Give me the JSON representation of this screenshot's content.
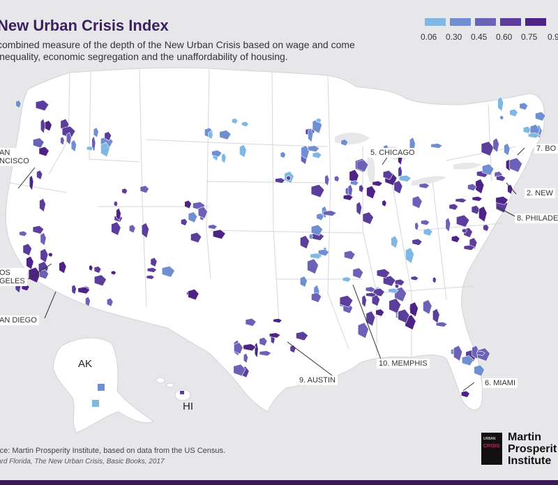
{
  "title": "New Urban Crisis Index",
  "subtitle": "combined measure of the depth of the New Urban Crisis based on wage and come inequality, economic segregation and the unaffordability of housing.",
  "legend": {
    "stops": [
      "0.06",
      "0.30",
      "0.45",
      "0.60",
      "0.75",
      "0.9"
    ],
    "colors": [
      "#7fb8e2",
      "#6f8fd0",
      "#6b62b8",
      "#5b3e9c",
      "#4d2485"
    ]
  },
  "regions": {
    "alaska": "AK",
    "hawaii": "HI"
  },
  "cities": [
    {
      "label": "AN\nNCISCO"
    },
    {
      "label": "OS\nGELES"
    },
    {
      "label": "AN DIEGO"
    },
    {
      "label": "5. CHICAGO"
    },
    {
      "label": "7. BO"
    },
    {
      "label": "2. NEW"
    },
    {
      "label": "8. PHILADE"
    },
    {
      "label": "10. MEMPHIS"
    },
    {
      "label": "9. AUSTIN"
    },
    {
      "label": "6. MIAMI"
    }
  ],
  "source": "rce: Martin Prosperity Institute, based on data from the US Census.",
  "citation": "ard Florida, The New Urban Crisis, Basic Books, 2017",
  "logo": {
    "name_line1": "Martin",
    "name_line2": "Prosperit",
    "name_line3": "Institute",
    "book_top": "URBAN",
    "book_mid": "CRISIS"
  }
}
